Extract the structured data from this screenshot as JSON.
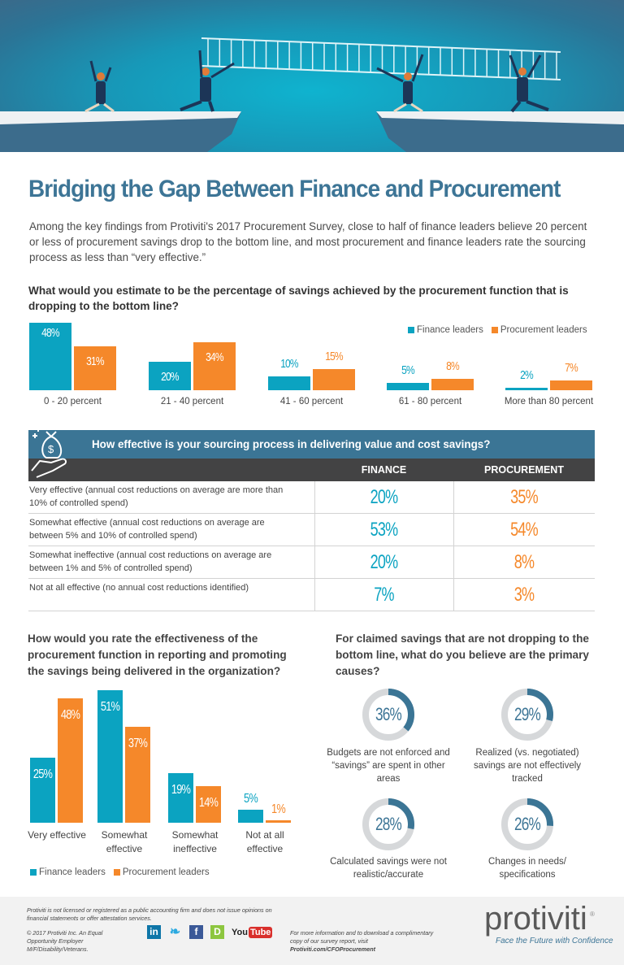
{
  "title": "Bridging the Gap Between Finance and Procurement",
  "intro": "Among the key findings from Protiviti's 2017 Procurement Survey, close to half of finance leaders believe 20 percent or less of procurement savings drop to the bottom line, and most procurement and finance leaders rate the sourcing process as less than “very effective.”",
  "colors": {
    "finance": "#0ba3c1",
    "procurement": "#f5882a",
    "accent": "#3b7595",
    "dark": "#434344",
    "donut_bg": "#d6d8da"
  },
  "chart_data": [
    {
      "type": "bar",
      "title": "What would you estimate to be the percentage of savings achieved by the procurement function that is dropping to the bottom line?",
      "categories": [
        "0 - 20 percent",
        "21 - 40 percent",
        "41 - 60 percent",
        "61 - 80 percent",
        "More than 80 percent"
      ],
      "series": [
        {
          "name": "Finance leaders",
          "values": [
            48,
            20,
            10,
            5,
            2
          ],
          "labels": [
            "48%",
            "20%",
            "10%",
            "5%",
            "2%"
          ]
        },
        {
          "name": "Procurement leaders",
          "values": [
            31,
            34,
            15,
            8,
            7
          ],
          "labels": [
            "31%",
            "34%",
            "15%",
            "8%",
            "7%"
          ]
        }
      ],
      "legend": "top-right",
      "ylim": [
        0,
        48
      ]
    },
    {
      "type": "table",
      "title": "How effective is your sourcing process in delivering value and cost savings?",
      "columns": [
        "FINANCE",
        "PROCUREMENT"
      ],
      "rows": [
        {
          "label": "Very effective (annual cost reductions on average are more than 10% of controlled spend)",
          "finance": "20%",
          "procurement": "35%"
        },
        {
          "label": "Somewhat effective (annual cost reductions on average are between 5% and 10% of controlled spend)",
          "finance": "53%",
          "procurement": "54%"
        },
        {
          "label": "Somewhat ineffective (annual cost reductions on average are between 1% and 5% of controlled spend)",
          "finance": "20%",
          "procurement": "8%"
        },
        {
          "label": "Not at all effective (no annual cost reductions identified)",
          "finance": "7%",
          "procurement": "3%"
        }
      ]
    },
    {
      "type": "bar",
      "title": "How would you rate the effectiveness of the procurement function in reporting and promoting the savings being delivered in the organization?",
      "categories": [
        "Very effective",
        "Somewhat effective",
        "Somewhat ineffective",
        "Not at all effective"
      ],
      "series": [
        {
          "name": "Finance leaders",
          "values": [
            25,
            51,
            19,
            5
          ],
          "labels": [
            "25%",
            "51%",
            "19%",
            "5%"
          ]
        },
        {
          "name": "Procurement leaders",
          "values": [
            48,
            37,
            14,
            1
          ],
          "labels": [
            "48%",
            "37%",
            "14%",
            "1%"
          ]
        }
      ],
      "legend": "bottom-left",
      "ylim": [
        0,
        51
      ]
    },
    {
      "type": "pie",
      "title": "For claimed savings that are not dropping to the bottom line, what do you believe are the primary causes?",
      "items": [
        {
          "value": 36,
          "label": "36%",
          "caption": "Budgets are not enforced and “savings” are spent in other areas"
        },
        {
          "value": 29,
          "label": "29%",
          "caption": "Realized (vs. negotiated) savings are not effectively tracked"
        },
        {
          "value": 28,
          "label": "28%",
          "caption": "Calculated savings were not realistic/accurate"
        },
        {
          "value": 26,
          "label": "26%",
          "caption": "Changes in needs/ specifications"
        }
      ]
    }
  ],
  "footer": {
    "disclaimer": "Protiviti is not licensed or registered as a public accounting firm and does not issue opinions on financial statements or offer attestation services.",
    "copyright": "© 2017 Protiviti Inc. An Equal Opportunity Employer M/F/Disability/Veterans.",
    "more_info": "For more information and to download a complimentary copy of our survey report, visit ",
    "more_info_link": "Protiviti.com/CFOProcurement",
    "logo": "protiviti",
    "tagline": "Face the Future with Confidence",
    "social": [
      {
        "icon": "linkedin-icon",
        "glyph": "in",
        "color": "#0e76a8"
      },
      {
        "icon": "twitter-icon",
        "glyph": "❧",
        "color": "#2aa9e0"
      },
      {
        "icon": "facebook-icon",
        "glyph": "f",
        "color": "#3b5998"
      },
      {
        "icon": "pulse-icon",
        "glyph": "D",
        "color": "#8dc63f"
      },
      {
        "icon": "youtube-icon",
        "glyph": "You",
        "glyph2": "Tube",
        "color": "#d9302c"
      }
    ]
  }
}
